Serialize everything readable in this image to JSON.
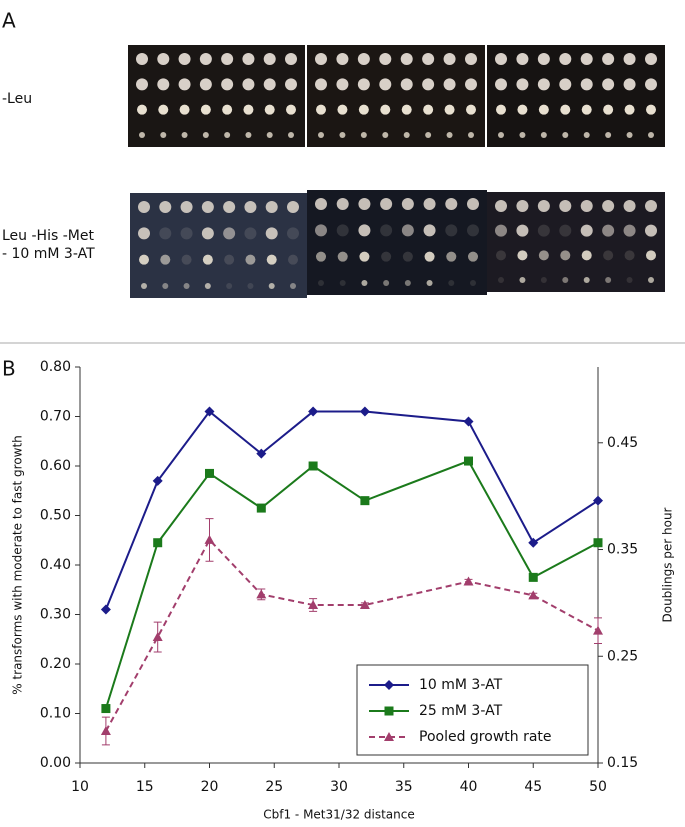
{
  "panel_labels": [
    "A",
    "B"
  ],
  "row_labels": [
    "-Leu",
    "Leu -His -Met",
    "- 10 mM 3-AT"
  ],
  "chart_data": {
    "type": "line",
    "xlabel": "Cbf1 - Met31/32 distance",
    "ylabel": "% transforms with moderate to fast growth",
    "y2label": "Doublings per hour",
    "x": [
      12,
      16,
      20,
      24,
      28,
      32,
      40,
      45,
      50
    ],
    "xlim": [
      10,
      50
    ],
    "xticks": [
      10,
      15,
      20,
      25,
      30,
      35,
      40,
      45,
      50
    ],
    "ylim": [
      0,
      0.8
    ],
    "yticks": [
      {
        "value": 0,
        "label": "0.00"
      },
      {
        "value": 0.1,
        "label": "0.10"
      },
      {
        "value": 0.2,
        "label": "0.20"
      },
      {
        "value": 0.3,
        "label": "0.30"
      },
      {
        "value": 0.4,
        "label": "0.40"
      },
      {
        "value": 0.5,
        "label": "0.50"
      },
      {
        "value": 0.6,
        "label": "0.60"
      },
      {
        "value": 0.7,
        "label": "0.70"
      },
      {
        "value": 0.8,
        "label": "0.80"
      }
    ],
    "y2lim": [
      0.15,
      0.521
    ],
    "y2ticks": [
      0.15,
      0.25,
      0.35,
      0.45
    ],
    "legend": "lower right",
    "series": [
      {
        "name": "10 mM 3-AT",
        "color": "#1c1c8a",
        "marker": "diamond",
        "values": [
          0.31,
          0.57,
          0.71,
          0.625,
          0.71,
          0.71,
          0.69,
          0.445,
          0.53
        ]
      },
      {
        "name": "25 mM 3-AT",
        "color": "#1b7a1b",
        "marker": "square",
        "values": [
          0.11,
          0.445,
          0.585,
          0.515,
          0.6,
          0.53,
          0.61,
          0.375,
          0.445
        ]
      },
      {
        "name": "Pooled growth rate",
        "color": "#a23e6c",
        "marker": "triangle",
        "dashed": true,
        "axis": "y2",
        "values": [
          0.18,
          0.268,
          0.359,
          0.308,
          0.298,
          0.298,
          0.32,
          0.307,
          0.274
        ],
        "errors": [
          0.013,
          0.014,
          0.02,
          0.005,
          0.006,
          0.002,
          0.002,
          0.002,
          0.012
        ]
      }
    ]
  }
}
